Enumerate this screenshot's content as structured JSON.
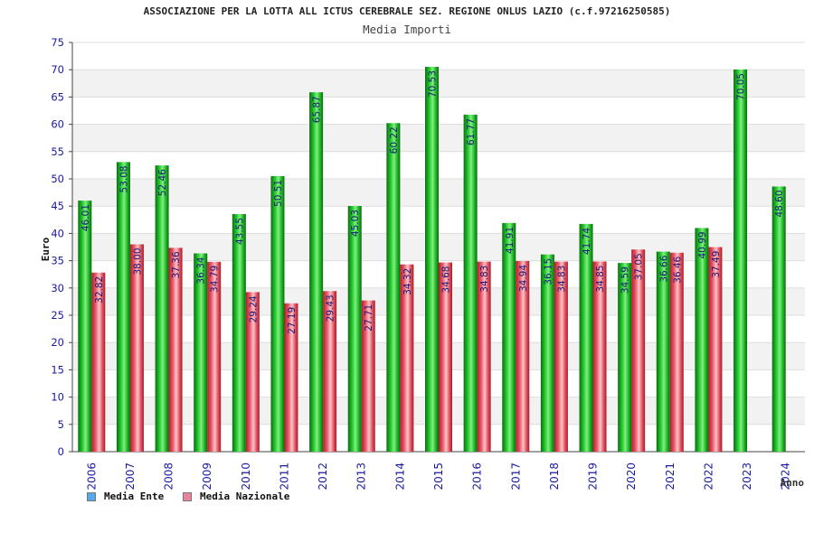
{
  "chart_data": {
    "type": "bar",
    "title": "ASSOCIAZIONE PER LA LOTTA ALL ICTUS CEREBRALE SEZ. REGIONE ONLUS LAZIO (c.f.97216250585)",
    "subtitle": "Media Importi",
    "ylabel": "Euro",
    "xlabel": "Anno",
    "ylim": [
      0,
      75
    ],
    "yticks": [
      0,
      5,
      10,
      15,
      20,
      25,
      30,
      35,
      40,
      45,
      50,
      55,
      60,
      65,
      70,
      75
    ],
    "grid": true,
    "legend_position": "bottom-left",
    "categories": [
      "2006",
      "2007",
      "2008",
      "2009",
      "2010",
      "2011",
      "2012",
      "2013",
      "2014",
      "2015",
      "2016",
      "2017",
      "2018",
      "2019",
      "2020",
      "2021",
      "2022",
      "2023",
      "2024"
    ],
    "series": [
      {
        "name": "Media Ente",
        "color": "#1fbf2a",
        "legend_color": "#55aaee",
        "values": [
          46.01,
          53.08,
          52.46,
          36.34,
          43.55,
          50.51,
          65.87,
          45.03,
          60.22,
          70.53,
          61.77,
          41.91,
          36.15,
          41.74,
          34.59,
          36.66,
          40.99,
          70.05,
          48.6
        ],
        "labels": [
          "46.01",
          "53.08",
          "52.46",
          "36.34",
          "43.55",
          "50.51",
          "65.87",
          "45.03",
          "60.22",
          "70.53",
          "61.77",
          "41.91",
          "36.15",
          "41.74",
          "34.59",
          "36.66",
          "40.99",
          "70.05",
          "48.60"
        ]
      },
      {
        "name": "Media Nazionale",
        "color": "#e85a6a",
        "legend_color": "#e8849a",
        "values": [
          32.82,
          38.0,
          37.36,
          34.79,
          29.24,
          27.19,
          29.43,
          27.71,
          34.32,
          34.68,
          34.83,
          34.94,
          34.83,
          34.85,
          37.05,
          36.46,
          37.49,
          null,
          null
        ],
        "labels": [
          "32.82",
          "38.00",
          "37.36",
          "34.79",
          "29.24",
          "27.19",
          "29.43",
          "27.71",
          "34.32",
          "34.68",
          "34.83",
          "34.94",
          "34.83",
          "34.85",
          "37.05",
          "36.46",
          "37.49",
          null,
          null
        ]
      }
    ]
  }
}
